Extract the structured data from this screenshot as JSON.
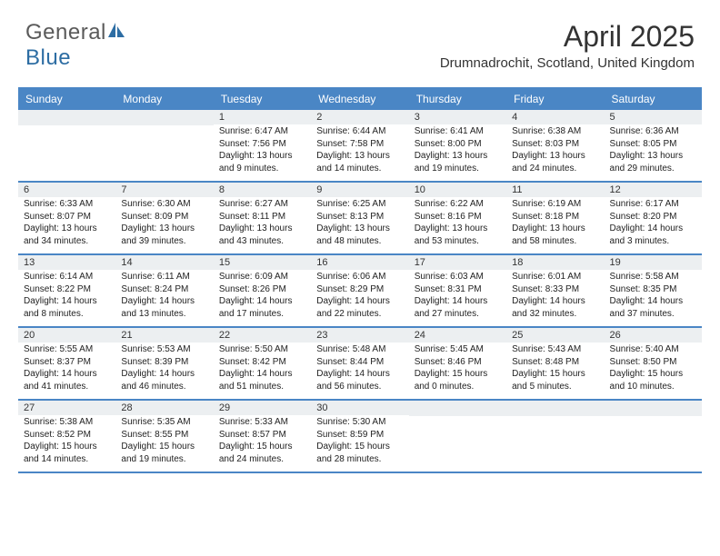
{
  "logo": {
    "text_general": "General",
    "text_blue": "Blue"
  },
  "title": "April 2025",
  "subtitle": "Drumnadrochit, Scotland, United Kingdom",
  "colors": {
    "header_bg": "#4a86c5",
    "header_text": "#ffffff",
    "daynum_bg": "#eceff1",
    "text": "#222222",
    "logo_gray": "#5a5a5a",
    "logo_blue": "#2d6da3",
    "border": "#4a86c5"
  },
  "weekdays": [
    "Sunday",
    "Monday",
    "Tuesday",
    "Wednesday",
    "Thursday",
    "Friday",
    "Saturday"
  ],
  "weeks": [
    [
      null,
      null,
      {
        "day": "1",
        "sunrise": "Sunrise: 6:47 AM",
        "sunset": "Sunset: 7:56 PM",
        "daylight": "Daylight: 13 hours and 9 minutes."
      },
      {
        "day": "2",
        "sunrise": "Sunrise: 6:44 AM",
        "sunset": "Sunset: 7:58 PM",
        "daylight": "Daylight: 13 hours and 14 minutes."
      },
      {
        "day": "3",
        "sunrise": "Sunrise: 6:41 AM",
        "sunset": "Sunset: 8:00 PM",
        "daylight": "Daylight: 13 hours and 19 minutes."
      },
      {
        "day": "4",
        "sunrise": "Sunrise: 6:38 AM",
        "sunset": "Sunset: 8:03 PM",
        "daylight": "Daylight: 13 hours and 24 minutes."
      },
      {
        "day": "5",
        "sunrise": "Sunrise: 6:36 AM",
        "sunset": "Sunset: 8:05 PM",
        "daylight": "Daylight: 13 hours and 29 minutes."
      }
    ],
    [
      {
        "day": "6",
        "sunrise": "Sunrise: 6:33 AM",
        "sunset": "Sunset: 8:07 PM",
        "daylight": "Daylight: 13 hours and 34 minutes."
      },
      {
        "day": "7",
        "sunrise": "Sunrise: 6:30 AM",
        "sunset": "Sunset: 8:09 PM",
        "daylight": "Daylight: 13 hours and 39 minutes."
      },
      {
        "day": "8",
        "sunrise": "Sunrise: 6:27 AM",
        "sunset": "Sunset: 8:11 PM",
        "daylight": "Daylight: 13 hours and 43 minutes."
      },
      {
        "day": "9",
        "sunrise": "Sunrise: 6:25 AM",
        "sunset": "Sunset: 8:13 PM",
        "daylight": "Daylight: 13 hours and 48 minutes."
      },
      {
        "day": "10",
        "sunrise": "Sunrise: 6:22 AM",
        "sunset": "Sunset: 8:16 PM",
        "daylight": "Daylight: 13 hours and 53 minutes."
      },
      {
        "day": "11",
        "sunrise": "Sunrise: 6:19 AM",
        "sunset": "Sunset: 8:18 PM",
        "daylight": "Daylight: 13 hours and 58 minutes."
      },
      {
        "day": "12",
        "sunrise": "Sunrise: 6:17 AM",
        "sunset": "Sunset: 8:20 PM",
        "daylight": "Daylight: 14 hours and 3 minutes."
      }
    ],
    [
      {
        "day": "13",
        "sunrise": "Sunrise: 6:14 AM",
        "sunset": "Sunset: 8:22 PM",
        "daylight": "Daylight: 14 hours and 8 minutes."
      },
      {
        "day": "14",
        "sunrise": "Sunrise: 6:11 AM",
        "sunset": "Sunset: 8:24 PM",
        "daylight": "Daylight: 14 hours and 13 minutes."
      },
      {
        "day": "15",
        "sunrise": "Sunrise: 6:09 AM",
        "sunset": "Sunset: 8:26 PM",
        "daylight": "Daylight: 14 hours and 17 minutes."
      },
      {
        "day": "16",
        "sunrise": "Sunrise: 6:06 AM",
        "sunset": "Sunset: 8:29 PM",
        "daylight": "Daylight: 14 hours and 22 minutes."
      },
      {
        "day": "17",
        "sunrise": "Sunrise: 6:03 AM",
        "sunset": "Sunset: 8:31 PM",
        "daylight": "Daylight: 14 hours and 27 minutes."
      },
      {
        "day": "18",
        "sunrise": "Sunrise: 6:01 AM",
        "sunset": "Sunset: 8:33 PM",
        "daylight": "Daylight: 14 hours and 32 minutes."
      },
      {
        "day": "19",
        "sunrise": "Sunrise: 5:58 AM",
        "sunset": "Sunset: 8:35 PM",
        "daylight": "Daylight: 14 hours and 37 minutes."
      }
    ],
    [
      {
        "day": "20",
        "sunrise": "Sunrise: 5:55 AM",
        "sunset": "Sunset: 8:37 PM",
        "daylight": "Daylight: 14 hours and 41 minutes."
      },
      {
        "day": "21",
        "sunrise": "Sunrise: 5:53 AM",
        "sunset": "Sunset: 8:39 PM",
        "daylight": "Daylight: 14 hours and 46 minutes."
      },
      {
        "day": "22",
        "sunrise": "Sunrise: 5:50 AM",
        "sunset": "Sunset: 8:42 PM",
        "daylight": "Daylight: 14 hours and 51 minutes."
      },
      {
        "day": "23",
        "sunrise": "Sunrise: 5:48 AM",
        "sunset": "Sunset: 8:44 PM",
        "daylight": "Daylight: 14 hours and 56 minutes."
      },
      {
        "day": "24",
        "sunrise": "Sunrise: 5:45 AM",
        "sunset": "Sunset: 8:46 PM",
        "daylight": "Daylight: 15 hours and 0 minutes."
      },
      {
        "day": "25",
        "sunrise": "Sunrise: 5:43 AM",
        "sunset": "Sunset: 8:48 PM",
        "daylight": "Daylight: 15 hours and 5 minutes."
      },
      {
        "day": "26",
        "sunrise": "Sunrise: 5:40 AM",
        "sunset": "Sunset: 8:50 PM",
        "daylight": "Daylight: 15 hours and 10 minutes."
      }
    ],
    [
      {
        "day": "27",
        "sunrise": "Sunrise: 5:38 AM",
        "sunset": "Sunset: 8:52 PM",
        "daylight": "Daylight: 15 hours and 14 minutes."
      },
      {
        "day": "28",
        "sunrise": "Sunrise: 5:35 AM",
        "sunset": "Sunset: 8:55 PM",
        "daylight": "Daylight: 15 hours and 19 minutes."
      },
      {
        "day": "29",
        "sunrise": "Sunrise: 5:33 AM",
        "sunset": "Sunset: 8:57 PM",
        "daylight": "Daylight: 15 hours and 24 minutes."
      },
      {
        "day": "30",
        "sunrise": "Sunrise: 5:30 AM",
        "sunset": "Sunset: 8:59 PM",
        "daylight": "Daylight: 15 hours and 28 minutes."
      },
      null,
      null,
      null
    ]
  ]
}
